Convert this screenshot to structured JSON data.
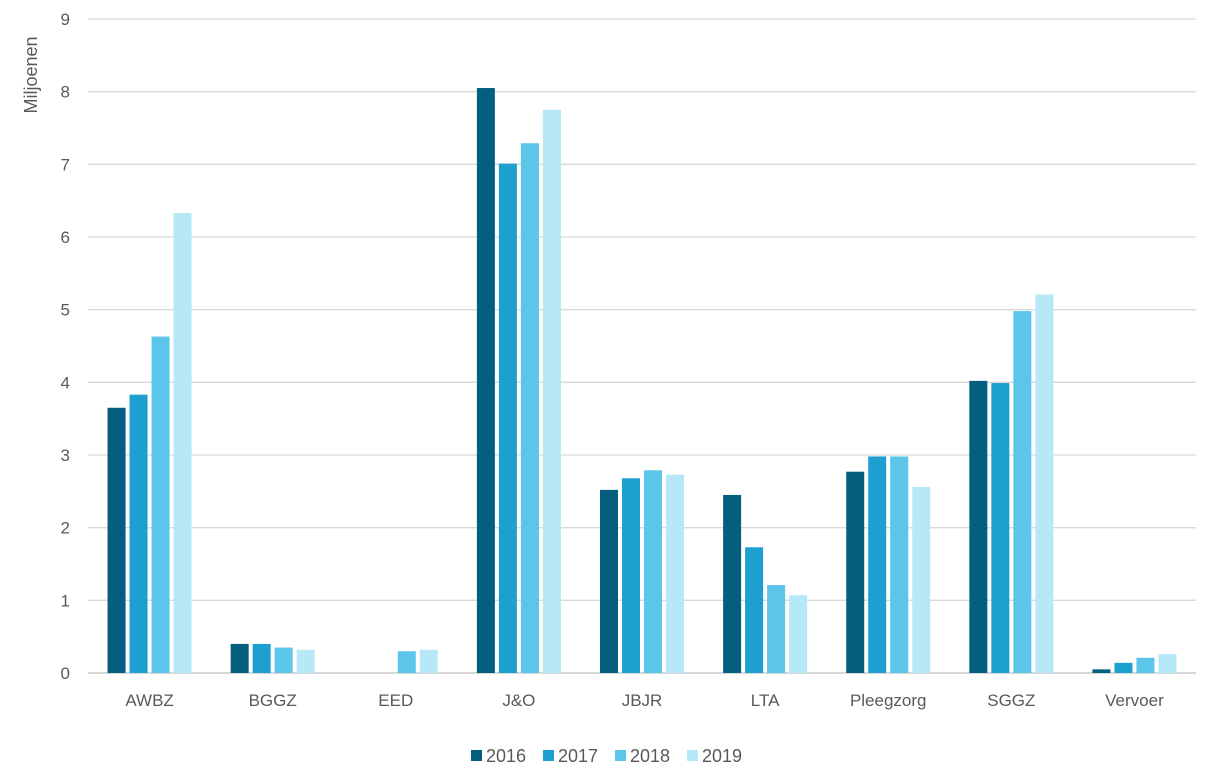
{
  "chart_data": {
    "type": "bar",
    "title": "",
    "xlabel": "",
    "ylabel": "Miljoenen",
    "ylim": [
      0,
      9
    ],
    "yticks": [
      0,
      1,
      2,
      3,
      4,
      5,
      6,
      7,
      8,
      9
    ],
    "grid": true,
    "legend_position": "bottom-center",
    "categories": [
      "AWBZ",
      "BGGZ",
      "EED",
      "J&O",
      "JBJR",
      "LTA",
      "Pleegzorg",
      "SGGZ",
      "Vervoer"
    ],
    "series": [
      {
        "name": "2016",
        "color": "#045f7e",
        "values": [
          3.65,
          0.4,
          0,
          8.05,
          2.52,
          2.45,
          2.77,
          4.02,
          0.05
        ]
      },
      {
        "name": "2017",
        "color": "#1d9fd0",
        "values": [
          3.83,
          0.4,
          0,
          7.01,
          2.68,
          1.73,
          2.98,
          3.99,
          0.14
        ]
      },
      {
        "name": "2018",
        "color": "#5bc5ea",
        "values": [
          4.63,
          0.35,
          0.3,
          7.29,
          2.79,
          1.21,
          2.98,
          4.98,
          0.21
        ]
      },
      {
        "name": "2019",
        "color": "#b7e8f8",
        "values": [
          6.33,
          0.32,
          0.32,
          7.75,
          2.73,
          1.07,
          2.56,
          5.21,
          0.26
        ]
      }
    ]
  }
}
